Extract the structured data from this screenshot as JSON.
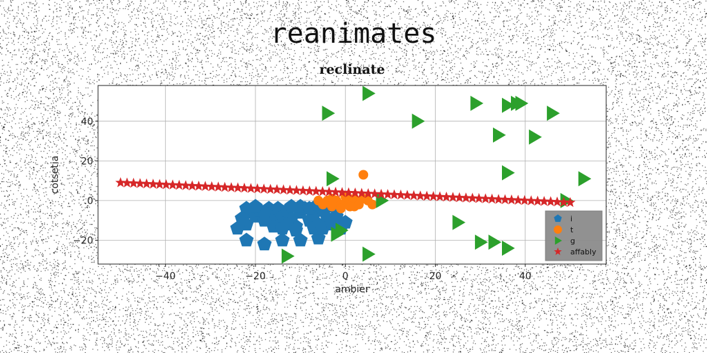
{
  "figure": {
    "suptitle": "reanimates"
  },
  "chart_data": {
    "type": "scatter",
    "title": "reclinate",
    "xlabel": "ambier",
    "ylabel": "cotsetia",
    "xlim": [
      -55,
      58
    ],
    "ylim": [
      -32,
      58
    ],
    "x_ticks": [
      -40,
      -20,
      0,
      20,
      40
    ],
    "x_tick_labels": [
      "−40",
      "−20",
      "0",
      "20",
      "40"
    ],
    "y_ticks": [
      -20,
      0,
      20,
      40
    ],
    "y_tick_labels": [
      "−20",
      ".0",
      "20",
      "40"
    ],
    "grid": true,
    "legend_position": "lower-right",
    "series": [
      {
        "name": "i",
        "color": "#1f77b4",
        "marker": "pentagon",
        "points": [
          [
            -22,
            -4
          ],
          [
            -21,
            -6
          ],
          [
            -23,
            -9
          ],
          [
            -22,
            -12
          ],
          [
            -24,
            -14
          ],
          [
            -20,
            -8
          ],
          [
            -19,
            -5
          ],
          [
            -18,
            -10
          ],
          [
            -17,
            -4
          ],
          [
            -16,
            -7
          ],
          [
            -15,
            -11
          ],
          [
            -15,
            -4
          ],
          [
            -14,
            -8
          ],
          [
            -13,
            -5
          ],
          [
            -12,
            -9
          ],
          [
            -11,
            -13
          ],
          [
            -10,
            -6
          ],
          [
            -9,
            -4
          ],
          [
            -8,
            -10
          ],
          [
            -7,
            -7
          ],
          [
            -6,
            -12
          ],
          [
            -5,
            -5
          ],
          [
            -4,
            -9
          ],
          [
            -3,
            -3
          ],
          [
            -2,
            -8
          ],
          [
            -1,
            -14
          ],
          [
            -10,
            -3
          ],
          [
            -12,
            -3
          ],
          [
            -13,
            -12
          ],
          [
            -16,
            -13
          ],
          [
            -18,
            -6
          ],
          [
            -20,
            -3
          ],
          [
            -22,
            -20
          ],
          [
            -18,
            -22
          ],
          [
            -14,
            -20
          ],
          [
            -10,
            -20
          ],
          [
            -6,
            -19
          ],
          [
            -7,
            -14
          ],
          [
            -5,
            -14
          ],
          [
            -3,
            -12
          ],
          [
            0,
            -11
          ],
          [
            -11,
            -15
          ],
          [
            -8,
            -4
          ],
          [
            -6,
            -2
          ],
          [
            -14,
            -14
          ]
        ]
      },
      {
        "name": "t",
        "color": "#ff7f0e",
        "marker": "circle",
        "points": [
          [
            4,
            13
          ],
          [
            -6,
            0
          ],
          [
            -5,
            -2
          ],
          [
            -4,
            0
          ],
          [
            -3,
            -3
          ],
          [
            -2,
            0
          ],
          [
            -1,
            -2
          ],
          [
            0,
            -1
          ],
          [
            1,
            0
          ],
          [
            2,
            -3
          ],
          [
            3,
            -1
          ],
          [
            4,
            1
          ],
          [
            5,
            0
          ],
          [
            6,
            -2
          ],
          [
            -3,
            1
          ],
          [
            0,
            2
          ],
          [
            2,
            1
          ],
          [
            3,
            -2
          ],
          [
            -1,
            -4
          ],
          [
            1,
            -3
          ]
        ]
      },
      {
        "name": "g",
        "color": "#2ca02c",
        "marker": "triangle-right",
        "points": [
          [
            5,
            54
          ],
          [
            -4,
            44
          ],
          [
            29,
            49
          ],
          [
            38,
            49
          ],
          [
            39,
            49
          ],
          [
            36,
            48
          ],
          [
            46,
            44
          ],
          [
            16,
            40
          ],
          [
            34,
            33
          ],
          [
            42,
            32
          ],
          [
            36,
            14
          ],
          [
            -3,
            11
          ],
          [
            53,
            11
          ],
          [
            49,
            0
          ],
          [
            8,
            0
          ],
          [
            25,
            -11
          ],
          [
            -2,
            -17
          ],
          [
            30,
            -21
          ],
          [
            33,
            -21
          ],
          [
            36,
            -24
          ],
          [
            -13,
            -28
          ],
          [
            5,
            -27
          ],
          [
            -1,
            -15
          ]
        ]
      },
      {
        "name": "affably",
        "color": "#d62728",
        "marker": "star",
        "line": {
          "x0": -50,
          "y0": 9,
          "x1": 50,
          "y1": -1,
          "n": 70
        }
      }
    ]
  }
}
